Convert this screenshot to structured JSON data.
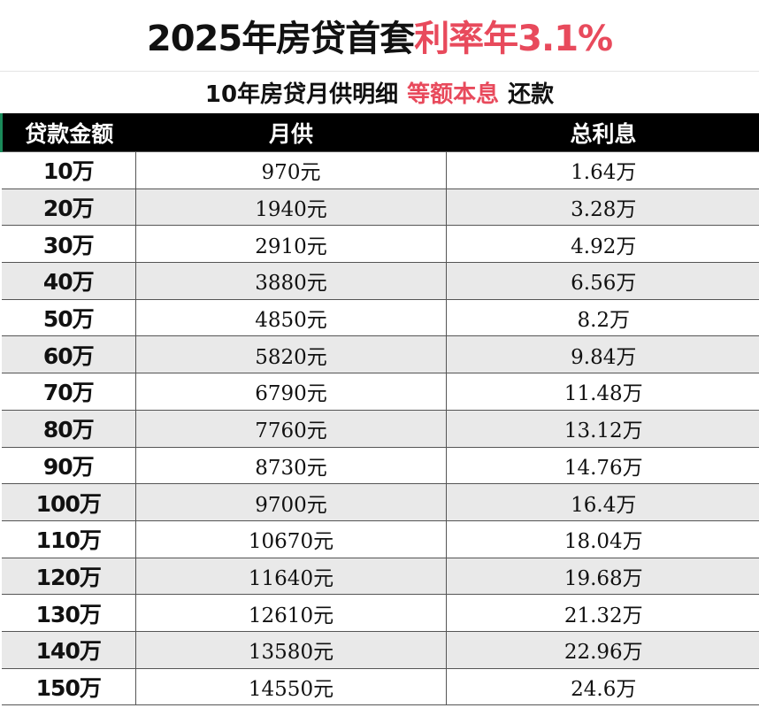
{
  "title": {
    "black": "2025年房贷首套",
    "red": "利率年3.1%"
  },
  "subtitle": {
    "part1": "10年房贷月供明细",
    "red": "等额本息",
    "part2": "还款"
  },
  "colors": {
    "accent_red": "#e84a5c",
    "header_bg": "#000000",
    "row_alt": "#e9e9e9"
  },
  "table": {
    "headers": [
      "贷款金额",
      "月供",
      "总利息"
    ],
    "rows": [
      [
        "10万",
        "970元",
        "1.64万"
      ],
      [
        "20万",
        "1940元",
        "3.28万"
      ],
      [
        "30万",
        "2910元",
        "4.92万"
      ],
      [
        "40万",
        "3880元",
        "6.56万"
      ],
      [
        "50万",
        "4850元",
        "8.2万"
      ],
      [
        "60万",
        "5820元",
        "9.84万"
      ],
      [
        "70万",
        "6790元",
        "11.48万"
      ],
      [
        "80万",
        "7760元",
        "13.12万"
      ],
      [
        "90万",
        "8730元",
        "14.76万"
      ],
      [
        "100万",
        "9700元",
        "16.4万"
      ],
      [
        "110万",
        "10670元",
        "18.04万"
      ],
      [
        "120万",
        "11640元",
        "19.68万"
      ],
      [
        "130万",
        "12610元",
        "21.32万"
      ],
      [
        "140万",
        "13580元",
        "22.96万"
      ],
      [
        "150万",
        "14550元",
        "24.6万"
      ]
    ]
  }
}
